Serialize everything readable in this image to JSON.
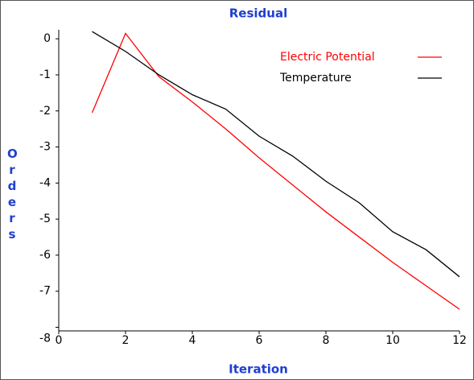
{
  "chart_data": {
    "type": "line",
    "title": "Residual",
    "xlabel": "Iteration",
    "ylabel": "Orders",
    "x": [
      1,
      2,
      3,
      4,
      5,
      6,
      7,
      8,
      9,
      10,
      11,
      12
    ],
    "series": [
      {
        "name": "Electric Potential",
        "color": "#ff0000",
        "values": [
          -2.05,
          0.15,
          -1.05,
          -1.75,
          -2.5,
          -3.3,
          -4.05,
          -4.8,
          -5.5,
          -6.2,
          -6.85,
          -7.5
        ]
      },
      {
        "name": "Temperature",
        "color": "#000000",
        "values": [
          0.2,
          -0.35,
          -1.0,
          -1.55,
          -1.95,
          -2.7,
          -3.25,
          -3.95,
          -4.55,
          -5.35,
          -5.85,
          -6.6
        ]
      }
    ],
    "xlim": [
      0,
      12
    ],
    "xticks": [
      0,
      2,
      4,
      6,
      8,
      10,
      12
    ],
    "ylim": [
      -8.1,
      0.25
    ],
    "yticks": [
      0,
      -1,
      -2,
      -3,
      -4,
      -5,
      -6,
      -7,
      -8
    ],
    "legend": "upper right"
  }
}
